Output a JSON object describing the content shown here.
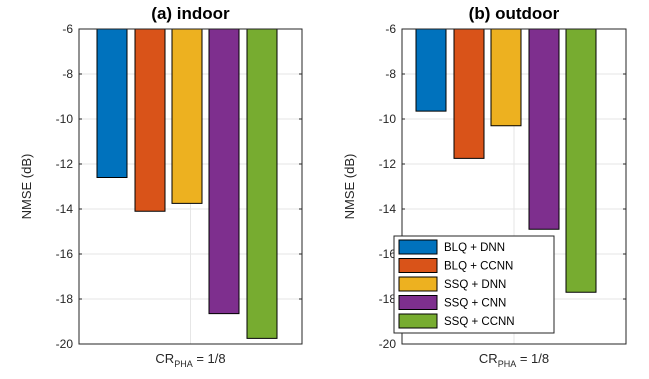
{
  "chart_data": [
    {
      "type": "bar",
      "title": "(a) indoor",
      "ylabel": "NMSE (dB)",
      "xlabel_main": "CR",
      "xlabel_sub": "PHA",
      "xlabel_tail": " = 1/8",
      "ylim": [
        -20,
        -6
      ],
      "yticks": [
        -6,
        -8,
        -10,
        -12,
        -14,
        -16,
        -18,
        -20
      ],
      "grid": true,
      "series": [
        {
          "name": "BLQ + DNN",
          "value": -12.6
        },
        {
          "name": "BLQ + CCNN",
          "value": -14.1
        },
        {
          "name": "SSQ + DNN",
          "value": -13.75
        },
        {
          "name": "SSQ + CNN",
          "value": -18.65
        },
        {
          "name": "SSQ + CCNN",
          "value": -19.75
        }
      ]
    },
    {
      "type": "bar",
      "title": "(b) outdoor",
      "ylabel": "NMSE (dB)",
      "xlabel_main": "CR",
      "xlabel_sub": "PHA",
      "xlabel_tail": " = 1/8",
      "ylim": [
        -20,
        -6
      ],
      "yticks": [
        -6,
        -8,
        -10,
        -12,
        -14,
        -16,
        -18,
        -20
      ],
      "grid": true,
      "legend_position": "bottom-left",
      "series": [
        {
          "name": "BLQ + DNN",
          "value": -9.65
        },
        {
          "name": "BLQ + CCNN",
          "value": -11.75
        },
        {
          "name": "SSQ + DNN",
          "value": -10.3
        },
        {
          "name": "SSQ + CNN",
          "value": -14.9
        },
        {
          "name": "SSQ + CCNN",
          "value": -17.7
        }
      ]
    }
  ],
  "colors": {
    "BLQ + DNN": "#0072BD",
    "BLQ + CCNN": "#D95319",
    "SSQ + DNN": "#EDB120",
    "SSQ + CNN": "#7E2F8E",
    "SSQ + CCNN": "#77AC30"
  }
}
